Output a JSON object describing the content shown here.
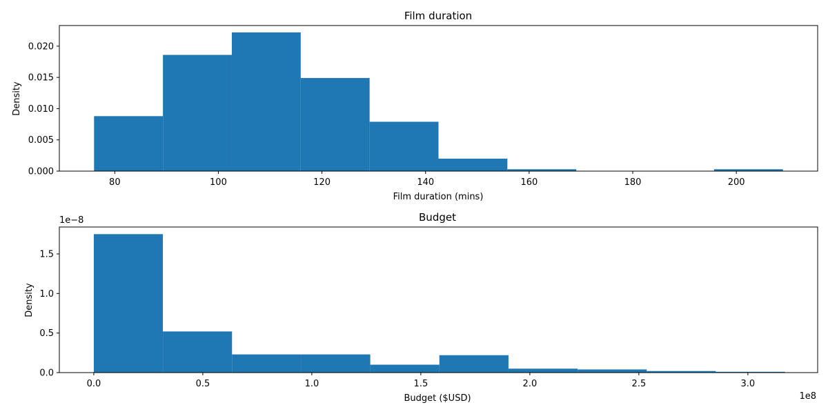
{
  "chart_data": [
    {
      "type": "bar",
      "subtype": "histogram",
      "title": "Film duration",
      "xlabel": "Film duration (mins)",
      "ylabel": "Density",
      "color": "#1f77b4",
      "xlim": [
        69.3,
        215.7
      ],
      "ylim": [
        0,
        0.0233
      ],
      "xticks": [
        80,
        100,
        120,
        140,
        160,
        180,
        200
      ],
      "xtick_labels": [
        "80",
        "100",
        "120",
        "140",
        "160",
        "180",
        "200"
      ],
      "yticks": [
        0,
        0.005,
        0.01,
        0.015,
        0.02
      ],
      "ytick_labels": [
        "0.000",
        "0.005",
        "0.010",
        "0.015",
        "0.020"
      ],
      "bin_edges": [
        76,
        89.3,
        102.6,
        115.9,
        129.2,
        142.5,
        155.8,
        169.1,
        182.4,
        195.7,
        209
      ],
      "values": [
        0.0088,
        0.0186,
        0.0222,
        0.0149,
        0.0079,
        0.002,
        0.0003,
        0.0,
        0.0,
        0.0003
      ],
      "grid": false
    },
    {
      "type": "bar",
      "subtype": "histogram",
      "title": "Budget",
      "xlabel": "Budget ($USD)",
      "ylabel": "Density",
      "color": "#1f77b4",
      "x_offset_label": "1e8",
      "y_offset_label": "1e−8",
      "xlim": [
        -0.158,
        3.32
      ],
      "ylim": [
        0,
        1.84
      ],
      "xticks": [
        0,
        0.5,
        1.0,
        1.5,
        2.0,
        2.5,
        3.0
      ],
      "xtick_labels": [
        "0.0",
        "0.5",
        "1.0",
        "1.5",
        "2.0",
        "2.5",
        "3.0"
      ],
      "yticks": [
        0,
        0.5,
        1.0,
        1.5
      ],
      "ytick_labels": [
        "0.0",
        "0.5",
        "1.0",
        "1.5"
      ],
      "bin_edges": [
        0,
        0.317,
        0.634,
        0.951,
        1.268,
        1.585,
        1.902,
        2.219,
        2.536,
        2.853,
        3.17
      ],
      "values": [
        1.75,
        0.52,
        0.23,
        0.23,
        0.1,
        0.22,
        0.05,
        0.04,
        0.02,
        0.01
      ],
      "grid": false
    }
  ]
}
